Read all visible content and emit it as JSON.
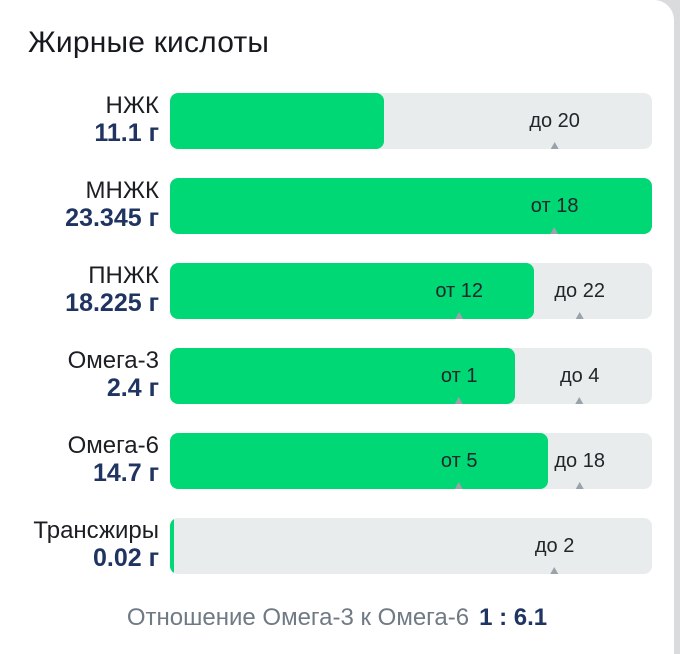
{
  "card": {
    "title": "Жирные кислоты"
  },
  "rows": [
    {
      "name": "НЖК",
      "amount": "11.1 г",
      "fill_fraction": 0.445,
      "markers": [
        {
          "text": "до 20",
          "pos_fraction": 0.798
        }
      ]
    },
    {
      "name": "МНЖК",
      "amount": "23.345 г",
      "fill_fraction": 1.0,
      "markers": [
        {
          "text": "от 18",
          "pos_fraction": 0.798
        }
      ]
    },
    {
      "name": "ПНЖК",
      "amount": "18.225 г",
      "fill_fraction": 0.755,
      "markers": [
        {
          "text": "от 12",
          "pos_fraction": 0.6
        },
        {
          "text": "до 22",
          "pos_fraction": 0.85
        }
      ]
    },
    {
      "name": "Омега-3",
      "amount": "2.4 г",
      "fill_fraction": 0.715,
      "markers": [
        {
          "text": "от 1",
          "pos_fraction": 0.6
        },
        {
          "text": "до 4",
          "pos_fraction": 0.85
        }
      ]
    },
    {
      "name": "Омега-6",
      "amount": "14.7 г",
      "fill_fraction": 0.785,
      "markers": [
        {
          "text": "от 5",
          "pos_fraction": 0.6
        },
        {
          "text": "до 18",
          "pos_fraction": 0.85
        }
      ]
    },
    {
      "name": "Трансжиры",
      "amount": "0.02 г",
      "fill_fraction": 0.008,
      "markers": [
        {
          "text": "до 2",
          "pos_fraction": 0.798
        }
      ]
    }
  ],
  "footer": {
    "label": "Отношение Омега-3 к Омега-6",
    "ratio": "1 : 6.1"
  },
  "colors": {
    "fill": "#00d775",
    "track": "#e9eced",
    "amount_text": "#1f3460"
  }
}
